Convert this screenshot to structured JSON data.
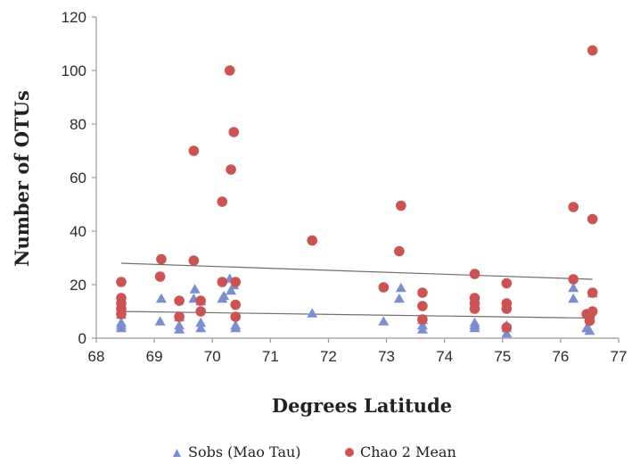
{
  "chart_data": {
    "type": "scatter",
    "title": "",
    "xlabel": "Degrees Latitude",
    "ylabel": "Number of OTUs",
    "xlim": [
      68,
      77
    ],
    "ylim": [
      0,
      120
    ],
    "xticks": [
      68,
      69,
      70,
      71,
      72,
      73,
      74,
      75,
      76,
      77
    ],
    "yticks": [
      0,
      20,
      40,
      60,
      80,
      100,
      120
    ],
    "grid": false,
    "legend_position": "bottom",
    "series": [
      {
        "name": "Sobs (Mao Tau)",
        "marker": "triangle",
        "color": "#7b8fd0",
        "points": [
          [
            68.43,
            4
          ],
          [
            68.43,
            5
          ],
          [
            68.43,
            6
          ],
          [
            68.43,
            9
          ],
          [
            69.1,
            6.5
          ],
          [
            69.12,
            15
          ],
          [
            69.43,
            3.5
          ],
          [
            69.43,
            5
          ],
          [
            69.43,
            8
          ],
          [
            69.68,
            15
          ],
          [
            69.7,
            18.5
          ],
          [
            69.8,
            4
          ],
          [
            69.8,
            6
          ],
          [
            69.8,
            14
          ],
          [
            70.17,
            15
          ],
          [
            70.2,
            16
          ],
          [
            70.3,
            22.5
          ],
          [
            70.32,
            18
          ],
          [
            70.37,
            20
          ],
          [
            70.4,
            4
          ],
          [
            70.4,
            5
          ],
          [
            71.72,
            9.5
          ],
          [
            72.95,
            6.5
          ],
          [
            73.22,
            15
          ],
          [
            73.25,
            19
          ],
          [
            73.62,
            3.5
          ],
          [
            73.62,
            5
          ],
          [
            73.62,
            7
          ],
          [
            74.52,
            4
          ],
          [
            74.52,
            5
          ],
          [
            74.52,
            6
          ],
          [
            75.07,
            2
          ],
          [
            75.07,
            4
          ],
          [
            75.07,
            5
          ],
          [
            76.22,
            15
          ],
          [
            76.22,
            19
          ],
          [
            76.45,
            4
          ],
          [
            76.5,
            3
          ],
          [
            76.55,
            17
          ]
        ],
        "trend": [
          [
            68.43,
            10
          ],
          [
            76.55,
            7.5
          ]
        ]
      },
      {
        "name": "Chao 2 Mean",
        "marker": "circle",
        "color": "#cd5352",
        "points": [
          [
            68.43,
            21
          ],
          [
            68.43,
            15
          ],
          [
            68.43,
            13
          ],
          [
            68.43,
            11
          ],
          [
            68.43,
            9
          ],
          [
            69.12,
            29.5
          ],
          [
            69.1,
            23
          ],
          [
            69.43,
            14
          ],
          [
            69.43,
            8
          ],
          [
            69.68,
            70
          ],
          [
            69.68,
            29
          ],
          [
            69.8,
            14
          ],
          [
            69.8,
            10
          ],
          [
            70.17,
            51
          ],
          [
            70.17,
            21
          ],
          [
            70.3,
            100
          ],
          [
            70.32,
            63
          ],
          [
            70.37,
            77
          ],
          [
            70.4,
            21
          ],
          [
            70.4,
            12.5
          ],
          [
            70.4,
            8
          ],
          [
            71.72,
            36.5
          ],
          [
            72.95,
            19
          ],
          [
            73.25,
            49.5
          ],
          [
            73.22,
            32.5
          ],
          [
            73.62,
            17
          ],
          [
            73.62,
            12
          ],
          [
            73.62,
            7
          ],
          [
            74.52,
            24
          ],
          [
            74.52,
            15
          ],
          [
            74.52,
            13
          ],
          [
            74.52,
            11
          ],
          [
            75.07,
            20.5
          ],
          [
            75.07,
            13
          ],
          [
            75.07,
            11
          ],
          [
            75.07,
            4
          ],
          [
            76.22,
            49
          ],
          [
            76.22,
            22
          ],
          [
            76.55,
            107.5
          ],
          [
            76.55,
            44.5
          ],
          [
            76.55,
            17
          ],
          [
            76.45,
            9
          ],
          [
            76.5,
            8
          ],
          [
            76.5,
            6.5
          ],
          [
            76.55,
            10
          ]
        ],
        "trend": [
          [
            68.43,
            28
          ],
          [
            76.55,
            22
          ]
        ]
      }
    ]
  }
}
